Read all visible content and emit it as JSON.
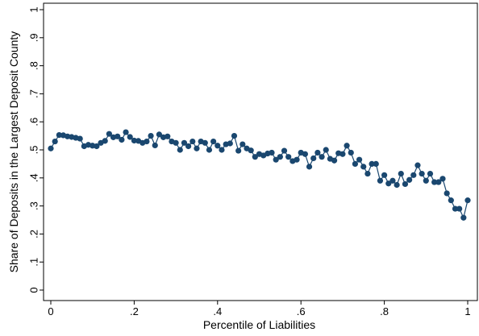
{
  "chart_data": {
    "type": "line",
    "title": "",
    "xlabel": "Percentile of Liabilities",
    "ylabel": "Share of Deposits in the Largest Deposit County",
    "xlim": [
      0,
      1
    ],
    "ylim": [
      0,
      1
    ],
    "xticks": [
      {
        "value": 0,
        "label": "0"
      },
      {
        "value": 0.2,
        "label": ".2"
      },
      {
        "value": 0.4,
        "label": ".4"
      },
      {
        "value": 0.6,
        "label": ".6"
      },
      {
        "value": 0.8,
        "label": ".8"
      },
      {
        "value": 1,
        "label": "1"
      }
    ],
    "yticks": [
      {
        "value": 0,
        "label": "0"
      },
      {
        "value": 0.1,
        "label": ".1"
      },
      {
        "value": 0.2,
        "label": ".2"
      },
      {
        "value": 0.3,
        "label": ".3"
      },
      {
        "value": 0.4,
        "label": ".4"
      },
      {
        "value": 0.5,
        "label": ".5"
      },
      {
        "value": 0.6,
        "label": ".6"
      },
      {
        "value": 0.7,
        "label": ".7"
      },
      {
        "value": 0.8,
        "label": ".8"
      },
      {
        "value": 0.9,
        "label": ".9"
      },
      {
        "value": 1,
        "label": "1"
      }
    ],
    "grid": false,
    "legend": "none",
    "series": [
      {
        "color": "#1a476f",
        "marker": "circle",
        "x": [
          0.0,
          0.01,
          0.02,
          0.03,
          0.04,
          0.05,
          0.06,
          0.07,
          0.08,
          0.09,
          0.1,
          0.11,
          0.12,
          0.13,
          0.14,
          0.15,
          0.16,
          0.17,
          0.18,
          0.19,
          0.2,
          0.21,
          0.22,
          0.23,
          0.24,
          0.25,
          0.26,
          0.27,
          0.28,
          0.29,
          0.3,
          0.31,
          0.32,
          0.33,
          0.34,
          0.35,
          0.36,
          0.37,
          0.38,
          0.39,
          0.4,
          0.41,
          0.42,
          0.43,
          0.44,
          0.45,
          0.46,
          0.47,
          0.48,
          0.49,
          0.5,
          0.51,
          0.52,
          0.53,
          0.54,
          0.55,
          0.56,
          0.57,
          0.58,
          0.59,
          0.6,
          0.61,
          0.62,
          0.63,
          0.64,
          0.65,
          0.66,
          0.67,
          0.68,
          0.69,
          0.7,
          0.71,
          0.72,
          0.73,
          0.74,
          0.75,
          0.76,
          0.77,
          0.78,
          0.79,
          0.8,
          0.81,
          0.82,
          0.83,
          0.84,
          0.85,
          0.86,
          0.87,
          0.88,
          0.89,
          0.9,
          0.91,
          0.92,
          0.93,
          0.94,
          0.95,
          0.96,
          0.97,
          0.98,
          0.99,
          1.0
        ],
        "y": [
          0.505,
          0.53,
          0.553,
          0.552,
          0.548,
          0.546,
          0.543,
          0.54,
          0.513,
          0.518,
          0.515,
          0.513,
          0.525,
          0.532,
          0.557,
          0.545,
          0.548,
          0.536,
          0.563,
          0.546,
          0.533,
          0.532,
          0.525,
          0.53,
          0.55,
          0.516,
          0.555,
          0.545,
          0.548,
          0.53,
          0.525,
          0.5,
          0.525,
          0.513,
          0.53,
          0.505,
          0.53,
          0.525,
          0.5,
          0.53,
          0.515,
          0.5,
          0.52,
          0.523,
          0.55,
          0.497,
          0.52,
          0.505,
          0.498,
          0.475,
          0.485,
          0.48,
          0.487,
          0.49,
          0.465,
          0.475,
          0.497,
          0.475,
          0.46,
          0.465,
          0.49,
          0.485,
          0.44,
          0.47,
          0.49,
          0.475,
          0.5,
          0.468,
          0.462,
          0.488,
          0.485,
          0.515,
          0.49,
          0.45,
          0.465,
          0.44,
          0.415,
          0.45,
          0.45,
          0.39,
          0.41,
          0.38,
          0.39,
          0.375,
          0.415,
          0.378,
          0.393,
          0.41,
          0.445,
          0.415,
          0.39,
          0.415,
          0.385,
          0.385,
          0.397,
          0.345,
          0.32,
          0.29,
          0.29,
          0.258,
          0.32
        ]
      }
    ]
  }
}
